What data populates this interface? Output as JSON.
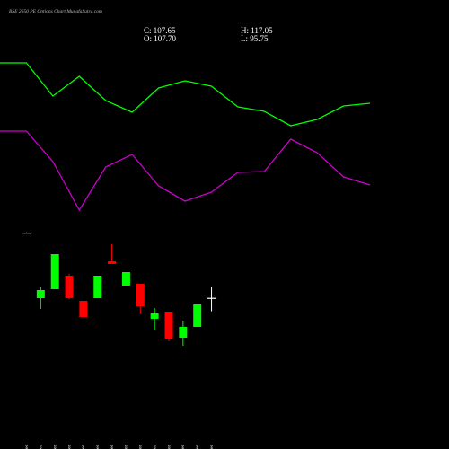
{
  "chart_data": [
    {
      "type": "line",
      "title": "BSE 2650 PE Options Chart MunafaSutra.com",
      "ylim": [
        0,
        100
      ],
      "series": [
        {
          "color": "#00ff00",
          "values": [
            72,
            72,
            57.2,
            66,
            55.2,
            50,
            60.8,
            64,
            61.6,
            52.4,
            50.4,
            44,
            46.8,
            52.8,
            54
          ]
        },
        {
          "color": "#cc00cc",
          "values": [
            41.6,
            41.6,
            28,
            6.4,
            25.6,
            31.2,
            17.2,
            10.4,
            14.4,
            23.2,
            23.6,
            38,
            32,
            21.2,
            17.6
          ]
        }
      ]
    },
    {
      "type": "candlestick",
      "info": [
        "C: 107.65",
        "H: 117.05",
        "O: 107.70",
        "L: 95.75"
      ],
      "categories": [
        "06 Dec",
        "09 Dec",
        "10 Dec",
        "11 Dec",
        "12 Dec",
        "13 Dec",
        "16 Dec",
        "17 Dec",
        "18 Dec",
        "19 Dec",
        "20 Dec",
        "23 Dec",
        "24 Dec",
        "26 Dec"
      ],
      "ylim": [
        53,
        173
      ],
      "open": [
        165.8,
        107.4,
        115.4,
        127.4,
        105,
        107.4,
        140.2,
        118.6,
        120.2,
        89,
        95.4,
        72.2,
        81.8,
        107.7
      ],
      "high": [
        166,
        117,
        146.6,
        129,
        105,
        127.4,
        155.4,
        130.6,
        120.2,
        98.6,
        95.4,
        87.4,
        101.8,
        117.05
      ],
      "low": [
        165.6,
        97.8,
        115.4,
        106.6,
        90.6,
        107.4,
        137.8,
        118.6,
        93,
        78.6,
        69,
        65,
        81.8,
        95.75
      ],
      "close": [
        165.8,
        114.6,
        146.6,
        107.4,
        90.6,
        127.4,
        137.8,
        130.6,
        100.2,
        93.8,
        71.4,
        81.8,
        101.8,
        107.65
      ],
      "colors": [
        "#ccffcc",
        "#00ff00",
        "#00ff00",
        "#ff0000",
        "#ff0000",
        "#00ff00",
        "#ff0000",
        "#00ff00",
        "#ff0000",
        "#00ff00",
        "#ff0000",
        "#00ff00",
        "#00ff00",
        "#ffffff"
      ]
    }
  ]
}
